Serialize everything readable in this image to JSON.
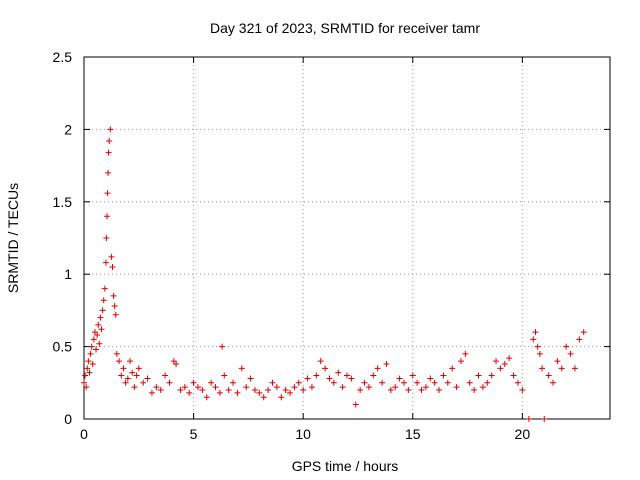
{
  "chart_data": {
    "type": "scatter",
    "title": "Day 321 of 2023, SRMTID for receiver tamr",
    "xlabel": "GPS time / hours",
    "ylabel": "SRMTID / TECUs",
    "xlim": [
      0,
      24
    ],
    "ylim": [
      0,
      2.5
    ],
    "x_ticks": [
      0,
      5,
      10,
      15,
      20
    ],
    "x_tick_labels": [
      "0",
      "5",
      "10",
      "15",
      "20"
    ],
    "y_ticks": [
      0,
      0.5,
      1,
      1.5,
      2,
      2.5
    ],
    "y_tick_labels": [
      "0",
      "0.5",
      "1",
      "1.5",
      "2",
      "2.5"
    ],
    "grid": true,
    "marker": "+",
    "series": [
      {
        "name": "SRMTID",
        "color": "#e00000",
        "x": [
          0.0,
          0.05,
          0.1,
          0.15,
          0.2,
          0.25,
          0.3,
          0.35,
          0.4,
          0.45,
          0.5,
          0.55,
          0.6,
          0.65,
          0.7,
          0.75,
          0.8,
          0.85,
          0.9,
          0.95,
          1.0,
          1.02,
          1.05,
          1.07,
          1.1,
          1.12,
          1.15,
          1.2,
          1.25,
          1.3,
          1.35,
          1.4,
          1.45,
          1.5,
          1.6,
          1.7,
          1.8,
          1.9,
          2.0,
          2.1,
          2.2,
          2.3,
          2.4,
          2.5,
          2.7,
          2.9,
          3.1,
          3.3,
          3.5,
          3.7,
          3.9,
          4.1,
          4.2,
          4.4,
          4.6,
          4.8,
          5.0,
          5.2,
          5.4,
          5.6,
          5.8,
          6.0,
          6.2,
          6.3,
          6.4,
          6.6,
          6.8,
          7.0,
          7.2,
          7.4,
          7.6,
          7.8,
          8.0,
          8.2,
          8.4,
          8.6,
          8.8,
          9.0,
          9.2,
          9.4,
          9.6,
          9.8,
          10.0,
          10.2,
          10.4,
          10.6,
          10.8,
          11.0,
          11.2,
          11.4,
          11.6,
          11.8,
          12.0,
          12.2,
          12.4,
          12.6,
          12.8,
          13.0,
          13.2,
          13.4,
          13.6,
          13.8,
          14.0,
          14.2,
          14.4,
          14.6,
          14.8,
          15.0,
          15.2,
          15.4,
          15.6,
          15.8,
          16.0,
          16.2,
          16.4,
          16.6,
          16.8,
          17.0,
          17.2,
          17.4,
          17.6,
          17.8,
          18.0,
          18.2,
          18.4,
          18.6,
          18.8,
          19.0,
          19.2,
          19.4,
          19.6,
          19.8,
          20.0,
          20.3,
          20.5,
          20.6,
          20.7,
          20.8,
          20.9,
          21.0,
          21.2,
          21.4,
          21.6,
          21.8,
          22.0,
          22.2,
          22.4,
          22.6,
          22.8
        ],
        "y": [
          0.25,
          0.3,
          0.22,
          0.35,
          0.4,
          0.32,
          0.45,
          0.5,
          0.38,
          0.55,
          0.6,
          0.48,
          0.58,
          0.65,
          0.52,
          0.7,
          0.62,
          0.75,
          0.82,
          0.9,
          1.08,
          1.25,
          1.4,
          1.56,
          1.7,
          1.84,
          1.92,
          2.0,
          1.12,
          1.05,
          0.85,
          0.78,
          0.72,
          0.45,
          0.4,
          0.3,
          0.35,
          0.25,
          0.28,
          0.4,
          0.32,
          0.22,
          0.3,
          0.35,
          0.25,
          0.28,
          0.18,
          0.22,
          0.2,
          0.3,
          0.25,
          0.4,
          0.38,
          0.2,
          0.22,
          0.18,
          0.25,
          0.22,
          0.2,
          0.15,
          0.25,
          0.22,
          0.18,
          0.5,
          0.3,
          0.2,
          0.25,
          0.18,
          0.35,
          0.22,
          0.28,
          0.2,
          0.18,
          0.15,
          0.2,
          0.25,
          0.22,
          0.15,
          0.2,
          0.18,
          0.22,
          0.25,
          0.2,
          0.28,
          0.22,
          0.3,
          0.4,
          0.35,
          0.28,
          0.25,
          0.32,
          0.22,
          0.3,
          0.28,
          0.1,
          0.2,
          0.25,
          0.22,
          0.3,
          0.35,
          0.25,
          0.38,
          0.2,
          0.22,
          0.28,
          0.25,
          0.2,
          0.3,
          0.25,
          0.2,
          0.22,
          0.28,
          0.25,
          0.2,
          0.3,
          0.25,
          0.35,
          0.22,
          0.4,
          0.45,
          0.25,
          0.2,
          0.3,
          0.22,
          0.25,
          0.3,
          0.4,
          0.35,
          0.38,
          0.42,
          0.3,
          0.25,
          0.2,
          0.0,
          0.55,
          0.6,
          0.5,
          0.45,
          0.35,
          0.0,
          0.3,
          0.25,
          0.4,
          0.35,
          0.5,
          0.45,
          0.35,
          0.55,
          0.6
        ]
      }
    ]
  }
}
